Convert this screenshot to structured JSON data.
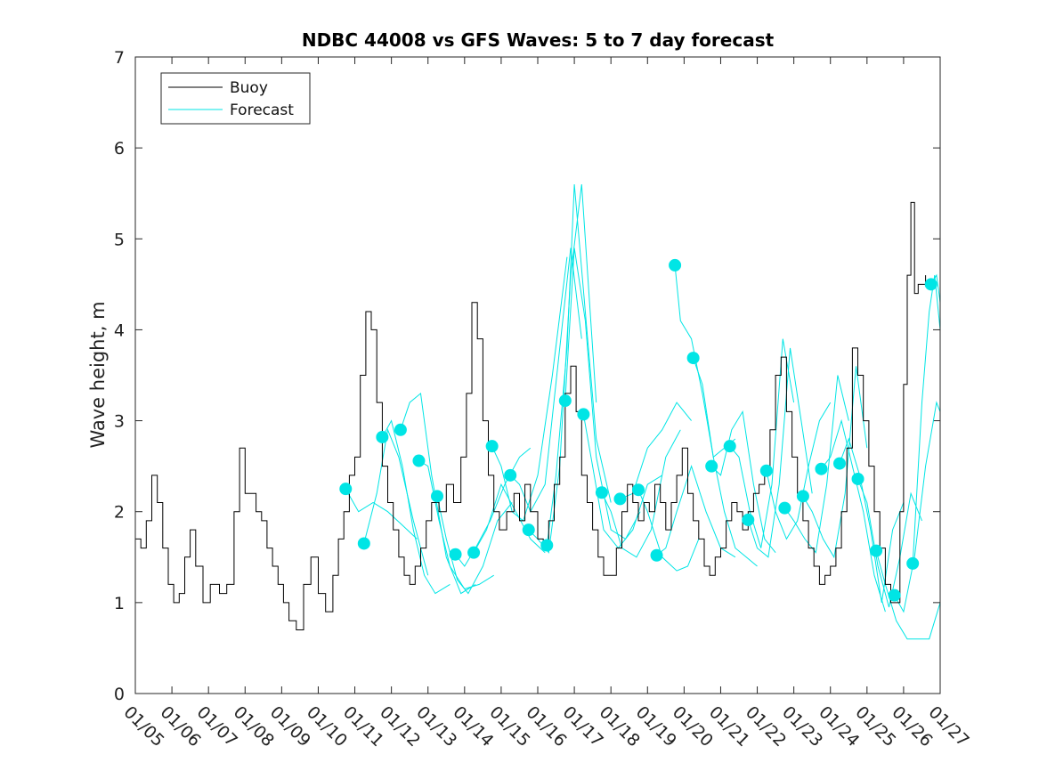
{
  "chart_data": {
    "type": "line",
    "title": "NDBC 44008 vs GFS Waves: 5 to 7 day forecast",
    "xlabel": "",
    "ylabel": "Wave height, m",
    "xlim": [
      0,
      22
    ],
    "ylim": [
      0,
      7
    ],
    "yticks": [
      0,
      1,
      2,
      3,
      4,
      5,
      6,
      7
    ],
    "xtick_labels": [
      "01/05",
      "01/06",
      "01/07",
      "01/08",
      "01/09",
      "01/10",
      "01/11",
      "01/12",
      "01/13",
      "01/14",
      "01/15",
      "01/16",
      "01/17",
      "01/18",
      "01/19",
      "01/20",
      "01/21",
      "01/22",
      "01/23",
      "01/24",
      "01/25",
      "01/26",
      "01/27"
    ],
    "legend": {
      "position": "top-left",
      "entries": [
        {
          "label": "Buoy",
          "color": "#000000"
        },
        {
          "label": "Forecast",
          "color": "#00e5e5"
        }
      ]
    },
    "series": [
      {
        "name": "Buoy",
        "color": "#000000",
        "x": [
          0,
          0.15,
          0.3,
          0.45,
          0.6,
          0.75,
          0.9,
          1.05,
          1.2,
          1.35,
          1.5,
          1.65,
          1.85,
          2.05,
          2.3,
          2.5,
          2.7,
          2.85,
          3.0,
          3.15,
          3.3,
          3.45,
          3.6,
          3.75,
          3.9,
          4.05,
          4.2,
          4.4,
          4.6,
          4.8,
          5.0,
          5.2,
          5.4,
          5.55,
          5.7,
          5.85,
          6.0,
          6.15,
          6.3,
          6.45,
          6.6,
          6.75,
          6.9,
          7.05,
          7.2,
          7.35,
          7.5,
          7.65,
          7.8,
          7.95,
          8.1,
          8.3,
          8.5,
          8.7,
          8.9,
          9.05,
          9.2,
          9.35,
          9.5,
          9.65,
          9.8,
          9.95,
          10.15,
          10.35,
          10.5,
          10.65,
          10.8,
          11.0,
          11.15,
          11.3,
          11.45,
          11.6,
          11.75,
          11.9,
          12.05,
          12.2,
          12.35,
          12.5,
          12.65,
          12.8,
          13.0,
          13.15,
          13.3,
          13.45,
          13.6,
          13.75,
          13.9,
          14.05,
          14.2,
          14.35,
          14.5,
          14.65,
          14.8,
          14.95,
          15.1,
          15.25,
          15.4,
          15.55,
          15.7,
          15.85,
          16.0,
          16.15,
          16.3,
          16.45,
          16.6,
          16.75,
          16.9,
          17.05,
          17.2,
          17.35,
          17.5,
          17.65,
          17.8,
          17.95,
          18.1,
          18.25,
          18.4,
          18.55,
          18.7,
          18.85,
          19.0,
          19.15,
          19.3,
          19.45,
          19.6,
          19.75,
          19.9,
          20.05,
          20.2,
          20.35,
          20.5,
          20.65,
          20.8,
          20.9,
          21.0,
          21.1,
          21.2,
          21.3,
          21.4,
          21.5,
          21.6
        ],
        "values": [
          1.7,
          1.6,
          1.9,
          2.4,
          2.1,
          1.6,
          1.2,
          1.0,
          1.1,
          1.5,
          1.8,
          1.4,
          1.0,
          1.2,
          1.1,
          1.2,
          2.0,
          2.7,
          2.2,
          2.2,
          2.0,
          1.9,
          1.6,
          1.4,
          1.2,
          1.0,
          0.8,
          0.7,
          1.2,
          1.5,
          1.1,
          0.9,
          1.3,
          1.7,
          2.0,
          2.4,
          2.6,
          3.5,
          4.2,
          4.0,
          3.2,
          2.5,
          2.1,
          1.8,
          1.5,
          1.3,
          1.2,
          1.4,
          1.6,
          1.9,
          2.1,
          2.0,
          2.3,
          2.1,
          2.6,
          3.3,
          4.3,
          3.9,
          3.0,
          2.4,
          2.0,
          1.8,
          2.0,
          2.2,
          1.9,
          2.3,
          2.0,
          1.7,
          1.6,
          1.9,
          2.3,
          2.6,
          3.3,
          3.6,
          3.1,
          2.4,
          2.1,
          1.8,
          1.5,
          1.3,
          1.3,
          1.6,
          2.0,
          2.3,
          2.1,
          1.9,
          2.1,
          2.0,
          2.3,
          2.1,
          1.8,
          2.1,
          2.4,
          2.7,
          2.2,
          1.9,
          1.7,
          1.4,
          1.3,
          1.5,
          1.6,
          1.9,
          2.1,
          2.0,
          1.8,
          2.0,
          2.2,
          2.3,
          2.5,
          2.9,
          3.5,
          3.7,
          3.1,
          2.6,
          2.2,
          1.9,
          1.6,
          1.4,
          1.2,
          1.3,
          1.4,
          1.6,
          2.0,
          2.7,
          3.8,
          3.5,
          3.0,
          2.5,
          2.0,
          1.6,
          1.2,
          1.0,
          1.0,
          2.0,
          3.4,
          4.6,
          5.4,
          4.4,
          4.5,
          4.5,
          4.6
        ]
      },
      {
        "name": "Forecast",
        "color": "#00e5e5",
        "x": [
          5.75,
          6.1,
          6.5,
          6.9,
          7.3,
          7.7
        ],
        "values": [
          2.25,
          2.0,
          2.1,
          2.0,
          1.85,
          1.7
        ]
      },
      {
        "name": "Forecast",
        "color": "#00e5e5",
        "x": [
          6.25,
          6.6,
          6.9,
          7.2,
          7.6,
          8.0
        ],
        "values": [
          1.65,
          2.2,
          2.9,
          2.6,
          1.9,
          1.3
        ]
      },
      {
        "name": "Forecast",
        "color": "#00e5e5",
        "x": [
          6.75,
          7.0,
          7.3,
          7.6,
          7.9,
          8.2,
          8.6
        ],
        "values": [
          2.82,
          3.0,
          2.5,
          1.8,
          1.3,
          1.1,
          1.2
        ]
      },
      {
        "name": "Forecast",
        "color": "#00e5e5",
        "x": [
          7.25,
          7.5,
          7.8,
          8.1,
          8.5,
          8.9,
          9.3
        ],
        "values": [
          2.9,
          3.2,
          3.3,
          2.4,
          1.5,
          1.1,
          1.2
        ]
      },
      {
        "name": "Forecast",
        "color": "#00e5e5",
        "x": [
          7.75,
          8.0,
          8.3,
          8.6,
          9.0,
          9.4,
          9.8
        ],
        "values": [
          2.56,
          2.5,
          1.9,
          1.4,
          1.15,
          1.2,
          1.3
        ]
      },
      {
        "name": "Forecast",
        "color": "#00e5e5",
        "x": [
          8.25,
          8.5,
          8.8,
          9.1,
          9.5,
          9.9,
          10.3
        ],
        "values": [
          2.17,
          1.7,
          1.25,
          1.1,
          1.4,
          1.9,
          2.1
        ]
      },
      {
        "name": "Forecast",
        "color": "#00e5e5",
        "x": [
          8.75,
          9.0,
          9.3,
          9.7,
          10.1,
          10.5,
          10.8
        ],
        "values": [
          1.53,
          1.4,
          1.6,
          1.9,
          2.3,
          2.6,
          2.7
        ]
      },
      {
        "name": "Forecast",
        "color": "#00e5e5",
        "x": [
          9.25,
          9.6,
          10.0,
          10.4,
          10.8,
          11.2
        ],
        "values": [
          1.55,
          1.8,
          2.3,
          2.0,
          1.7,
          1.55
        ]
      },
      {
        "name": "Forecast",
        "color": "#00e5e5",
        "x": [
          9.75,
          10.0,
          10.3,
          10.6,
          11.0,
          11.4,
          11.8
        ],
        "values": [
          2.72,
          2.5,
          2.0,
          1.9,
          2.4,
          3.5,
          4.8
        ]
      },
      {
        "name": "Forecast",
        "color": "#00e5e5",
        "x": [
          10.25,
          10.5,
          10.8,
          11.2,
          11.6,
          11.9,
          12.2
        ],
        "values": [
          2.4,
          2.3,
          2.0,
          2.3,
          3.8,
          4.9,
          3.9
        ]
      },
      {
        "name": "Forecast",
        "color": "#00e5e5",
        "x": [
          10.75,
          11.0,
          11.3,
          11.6,
          11.9,
          12.2,
          12.6
        ],
        "values": [
          1.8,
          1.7,
          1.55,
          2.5,
          4.6,
          5.6,
          3.2
        ]
      },
      {
        "name": "Forecast",
        "color": "#00e5e5",
        "x": [
          11.25,
          11.5,
          11.8,
          12.0,
          12.3,
          12.6,
          13.0
        ],
        "values": [
          1.63,
          2.4,
          3.8,
          5.6,
          4.2,
          2.8,
          2.1
        ]
      },
      {
        "name": "Forecast",
        "color": "#00e5e5",
        "x": [
          11.75,
          12.0,
          12.3,
          12.6,
          13.0,
          13.4,
          13.8
        ],
        "values": [
          3.22,
          4.9,
          4.1,
          2.6,
          1.8,
          1.7,
          2.0
        ]
      },
      {
        "name": "Forecast",
        "color": "#00e5e5",
        "x": [
          12.25,
          12.5,
          12.8,
          13.2,
          13.6,
          14.0,
          14.4
        ],
        "values": [
          3.07,
          2.5,
          1.8,
          1.6,
          1.8,
          2.3,
          2.4
        ]
      },
      {
        "name": "Forecast",
        "color": "#00e5e5",
        "x": [
          12.75,
          13.0,
          13.3,
          13.7,
          14.1,
          14.5,
          14.9
        ],
        "values": [
          2.21,
          2.0,
          1.6,
          1.5,
          1.8,
          2.6,
          2.9
        ]
      },
      {
        "name": "Forecast",
        "color": "#00e5e5",
        "x": [
          13.25,
          13.6,
          14.0,
          14.4,
          14.8,
          15.2
        ],
        "values": [
          2.14,
          2.2,
          2.7,
          2.9,
          3.2,
          3.0
        ]
      },
      {
        "name": "Forecast",
        "color": "#00e5e5",
        "x": [
          13.75,
          14.0,
          14.4,
          14.8,
          15.1,
          15.4
        ],
        "values": [
          2.24,
          2.0,
          1.5,
          1.35,
          1.4,
          1.7
        ]
      },
      {
        "name": "Forecast",
        "color": "#00e5e5",
        "x": [
          14.25,
          14.5,
          14.8,
          15.2,
          15.6,
          16.0,
          16.4
        ],
        "values": [
          1.52,
          1.6,
          2.0,
          2.5,
          2.0,
          1.6,
          1.5
        ]
      },
      {
        "name": "Forecast",
        "color": "#00e5e5",
        "x": [
          14.75,
          14.9,
          15.2,
          15.5,
          15.8,
          16.1,
          16.4
        ],
        "values": [
          4.71,
          4.1,
          3.9,
          3.3,
          2.6,
          2.7,
          2.8
        ]
      },
      {
        "name": "Forecast",
        "color": "#00e5e5",
        "x": [
          15.25,
          15.5,
          15.8,
          16.1,
          16.4,
          16.7,
          17.0
        ],
        "values": [
          3.69,
          3.4,
          2.6,
          2.0,
          1.6,
          1.5,
          1.4
        ]
      },
      {
        "name": "Forecast",
        "color": "#00e5e5",
        "x": [
          15.75,
          16.0,
          16.3,
          16.6,
          16.9,
          17.2,
          17.5
        ],
        "values": [
          2.5,
          2.4,
          2.9,
          3.1,
          2.3,
          1.7,
          1.55
        ]
      },
      {
        "name": "Forecast",
        "color": "#00e5e5",
        "x": [
          16.25,
          16.5,
          16.8,
          17.1,
          17.4,
          17.7,
          18.0
        ],
        "values": [
          2.72,
          2.6,
          2.0,
          1.6,
          2.3,
          3.9,
          3.2
        ]
      },
      {
        "name": "Forecast",
        "color": "#00e5e5",
        "x": [
          16.75,
          17.0,
          17.3,
          17.6,
          17.9,
          18.2,
          18.5
        ],
        "values": [
          1.91,
          1.6,
          1.5,
          2.3,
          3.8,
          3.0,
          2.2
        ]
      },
      {
        "name": "Forecast",
        "color": "#00e5e5",
        "x": [
          17.25,
          17.5,
          17.8,
          18.1,
          18.4,
          18.7,
          19.0
        ],
        "values": [
          2.45,
          2.0,
          1.7,
          1.9,
          2.5,
          3.0,
          3.2
        ]
      },
      {
        "name": "Forecast",
        "color": "#00e5e5",
        "x": [
          17.75,
          18.0,
          18.3,
          18.6,
          18.9,
          19.2,
          19.5
        ],
        "values": [
          2.04,
          1.9,
          1.7,
          1.55,
          2.3,
          3.5,
          3.0
        ]
      },
      {
        "name": "Forecast",
        "color": "#00e5e5",
        "x": [
          18.25,
          18.5,
          18.8,
          19.1,
          19.4,
          19.7,
          20.0
        ],
        "values": [
          2.17,
          2.0,
          1.7,
          1.5,
          2.2,
          3.6,
          2.7
        ]
      },
      {
        "name": "Forecast",
        "color": "#00e5e5",
        "x": [
          18.75,
          19.0,
          19.3,
          19.6,
          19.9,
          20.2,
          20.5
        ],
        "values": [
          2.47,
          2.6,
          3.0,
          2.5,
          2.0,
          1.3,
          0.9
        ]
      },
      {
        "name": "Forecast",
        "color": "#00e5e5",
        "x": [
          19.25,
          19.5,
          19.8,
          20.1,
          20.4,
          20.7,
          21.0
        ],
        "values": [
          2.53,
          2.8,
          2.4,
          1.8,
          1.0,
          1.8,
          2.1
        ]
      },
      {
        "name": "Forecast",
        "color": "#00e5e5",
        "x": [
          19.75,
          20.0,
          20.3,
          20.6,
          20.9,
          21.2,
          21.5
        ],
        "values": [
          2.36,
          2.1,
          1.4,
          0.95,
          1.5,
          2.2,
          1.9
        ]
      },
      {
        "name": "Forecast",
        "color": "#00e5e5",
        "x": [
          20.25,
          20.5,
          20.8,
          21.1,
          21.4,
          21.7,
          22.0
        ],
        "values": [
          1.57,
          1.2,
          0.8,
          0.6,
          0.6,
          0.6,
          1.0
        ]
      },
      {
        "name": "Forecast",
        "color": "#00e5e5",
        "x": [
          20.75,
          21.0,
          21.3,
          21.6,
          21.9,
          22.0
        ],
        "values": [
          1.08,
          0.9,
          1.5,
          2.5,
          3.2,
          3.1
        ]
      },
      {
        "name": "Forecast",
        "color": "#00e5e5",
        "x": [
          21.25,
          21.5,
          21.7,
          21.85,
          22.0
        ],
        "values": [
          1.43,
          3.2,
          4.2,
          4.6,
          4.0
        ]
      },
      {
        "name": "Forecast",
        "color": "#00e5e5",
        "x": [
          21.75,
          21.9,
          22.0
        ],
        "values": [
          4.5,
          4.6,
          4.3
        ]
      }
    ]
  }
}
